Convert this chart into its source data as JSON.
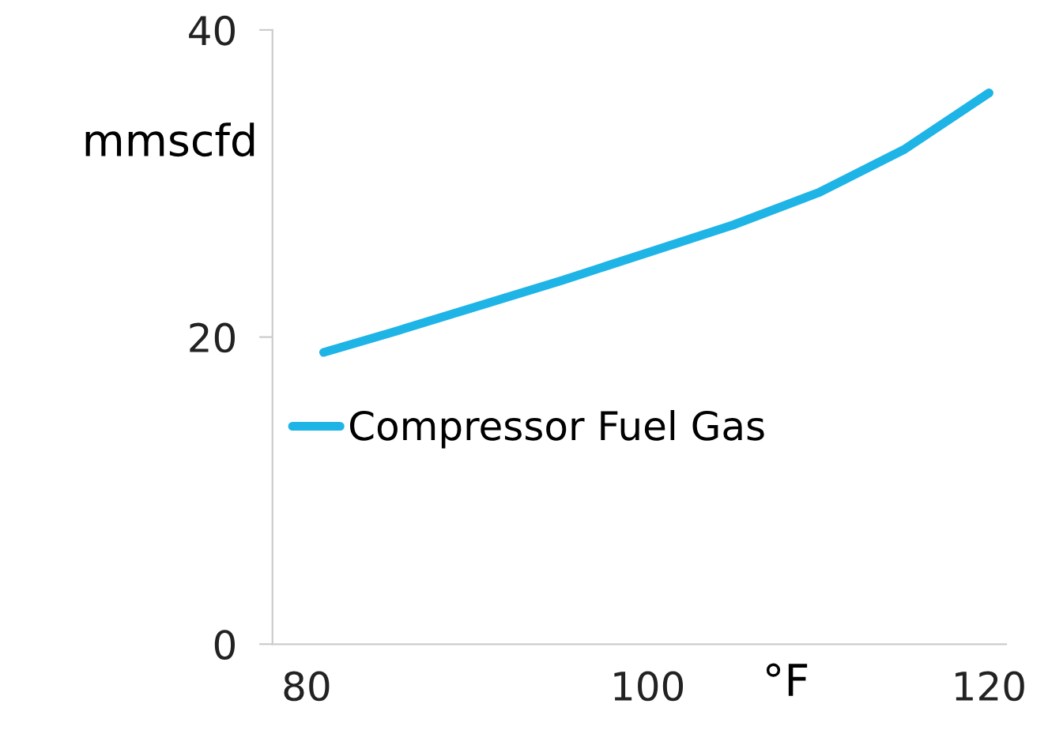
{
  "chart_data": {
    "type": "line",
    "xlabel": "°F",
    "ylabel": "mmscfd",
    "x": [
      81,
      85,
      90,
      95,
      100,
      105,
      110,
      115,
      120
    ],
    "series": [
      {
        "name": "Compressor Fuel Gas",
        "color": "#1fb4e6",
        "values": [
          19.0,
          20.3,
          22.0,
          23.7,
          25.5,
          27.3,
          29.4,
          32.2,
          35.9
        ]
      }
    ],
    "xlim": [
      78,
      121
    ],
    "xticks": [
      80,
      100,
      120
    ],
    "ylim": [
      0,
      40
    ],
    "yticks": [
      0,
      20,
      40
    ],
    "grid": false,
    "legend": "center",
    "marker": "none",
    "line_style": "solid"
  }
}
